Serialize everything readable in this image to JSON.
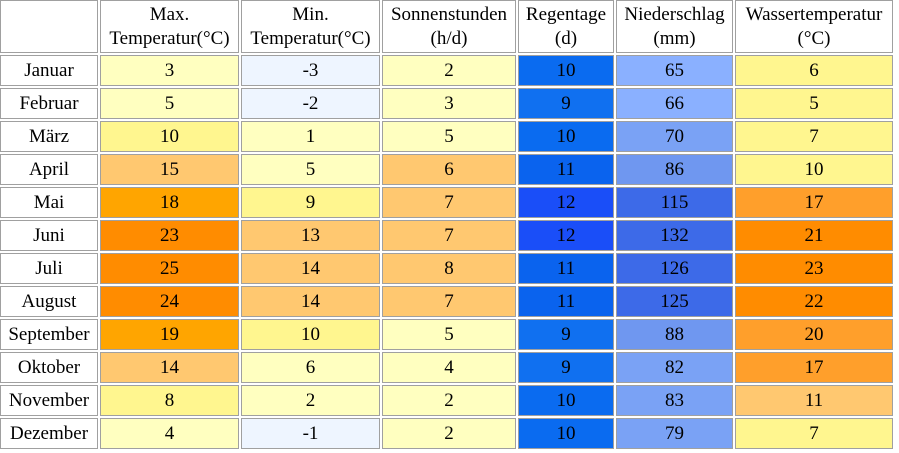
{
  "table": {
    "columns": [
      {
        "key": "max",
        "line1": "Max.",
        "line2": "Temperatur(°C)"
      },
      {
        "key": "min",
        "line1": "Min.",
        "line2": "Temperatur(°C)"
      },
      {
        "key": "sun",
        "line1": "Sonnenstunden",
        "line2": "(h/d)"
      },
      {
        "key": "rain_days",
        "line1": "Regentage",
        "line2": "(d)"
      },
      {
        "key": "precip",
        "line1": "Niederschlag",
        "line2": "(mm)"
      },
      {
        "key": "water",
        "line1": "Wassertemperatur",
        "line2": "(°C)"
      }
    ],
    "rows": [
      {
        "month": "Januar",
        "values": [
          "3",
          "-3",
          "2",
          "10",
          "65",
          "6"
        ]
      },
      {
        "month": "Februar",
        "values": [
          "5",
          "-2",
          "3",
          "9",
          "66",
          "5"
        ]
      },
      {
        "month": "März",
        "values": [
          "10",
          "1",
          "5",
          "10",
          "70",
          "7"
        ]
      },
      {
        "month": "April",
        "values": [
          "15",
          "5",
          "6",
          "11",
          "86",
          "10"
        ]
      },
      {
        "month": "Mai",
        "values": [
          "18",
          "9",
          "7",
          "12",
          "115",
          "17"
        ]
      },
      {
        "month": "Juni",
        "values": [
          "23",
          "13",
          "7",
          "12",
          "132",
          "21"
        ]
      },
      {
        "month": "Juli",
        "values": [
          "25",
          "14",
          "8",
          "11",
          "126",
          "23"
        ]
      },
      {
        "month": "August",
        "values": [
          "24",
          "14",
          "7",
          "11",
          "125",
          "22"
        ]
      },
      {
        "month": "September",
        "values": [
          "19",
          "10",
          "5",
          "9",
          "88",
          "20"
        ]
      },
      {
        "month": "Oktober",
        "values": [
          "14",
          "6",
          "4",
          "9",
          "82",
          "17"
        ]
      },
      {
        "month": "November",
        "values": [
          "8",
          "2",
          "2",
          "10",
          "83",
          "11"
        ]
      },
      {
        "month": "Dezember",
        "values": [
          "4",
          "-1",
          "2",
          "10",
          "79",
          "7"
        ]
      }
    ],
    "cell_colors": [
      [
        "#ffffc0",
        "#eef5ff",
        "#ffffc0",
        "#0a6bf0",
        "#8ab0ff",
        "#fff68f"
      ],
      [
        "#ffffc0",
        "#eef5ff",
        "#ffffc0",
        "#1070f0",
        "#8ab0ff",
        "#fff68f"
      ],
      [
        "#fff68f",
        "#ffffc0",
        "#ffffc0",
        "#0a6bf0",
        "#7aa2f5",
        "#fff68f"
      ],
      [
        "#ffc870",
        "#ffffc0",
        "#ffc870",
        "#0a63ee",
        "#6f97f0",
        "#fff68f"
      ],
      [
        "#ffa500",
        "#fff68f",
        "#ffc870",
        "#1a4ef8",
        "#3d6ae8",
        "#ff9f2b"
      ],
      [
        "#ff8c00",
        "#ffc870",
        "#ffc870",
        "#1a4ef8",
        "#3d6ae8",
        "#ff8c00"
      ],
      [
        "#ff8c00",
        "#ffc870",
        "#ffc870",
        "#0a63ee",
        "#3d6ae8",
        "#ff8c00"
      ],
      [
        "#ff8c00",
        "#ffc870",
        "#ffc870",
        "#0a63ee",
        "#3d6ae8",
        "#ff8c00"
      ],
      [
        "#ffa500",
        "#fff68f",
        "#ffffc0",
        "#1070f0",
        "#6f97f0",
        "#ff9f2b"
      ],
      [
        "#ffc870",
        "#ffffc0",
        "#ffffc0",
        "#1070f0",
        "#7aa2f5",
        "#ff9f2b"
      ],
      [
        "#fff68f",
        "#ffffc0",
        "#ffffc0",
        "#0a6bf0",
        "#7aa2f5",
        "#ffc870"
      ],
      [
        "#ffffc0",
        "#eef5ff",
        "#ffffc0",
        "#0a6bf0",
        "#7aa2f5",
        "#fff68f"
      ]
    ]
  }
}
